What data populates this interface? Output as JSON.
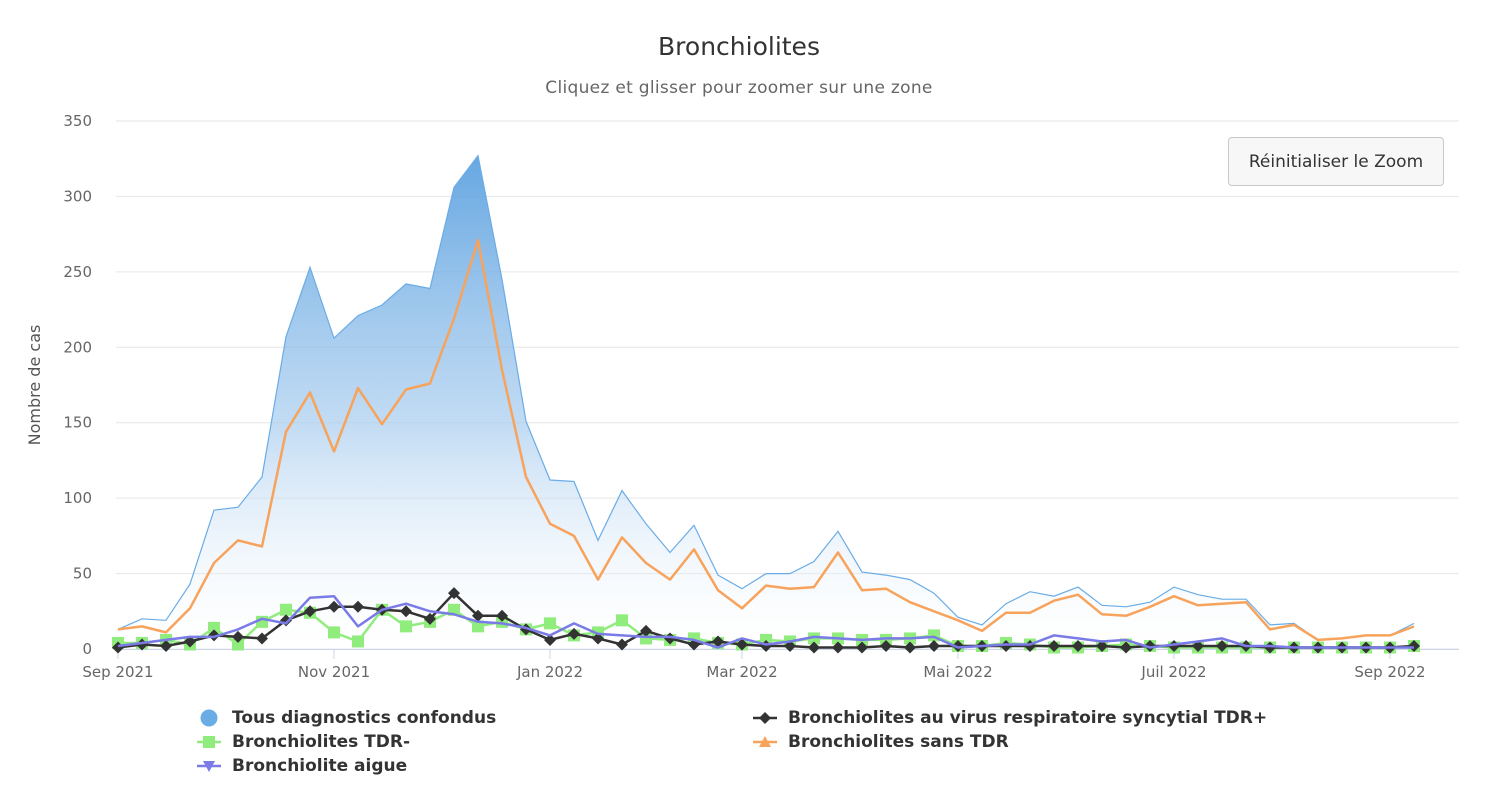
{
  "chart_data": {
    "type": "line",
    "title": "Bronchiolites",
    "subtitle": "Cliquez et glisser pour zoomer sur une zone",
    "ylabel": "Nombre de cas",
    "xlabel": "",
    "ylim": [
      0,
      350
    ],
    "yticks": [
      "0",
      "50",
      "100",
      "150",
      "200",
      "250",
      "300",
      "350"
    ],
    "xtick_labels": [
      "Sep 2021",
      "Nov 2021",
      "Jan 2022",
      "Mar 2022",
      "Mai 2022",
      "Juil 2022",
      "Sep 2022"
    ],
    "xtick_weeks": [
      0,
      9,
      18,
      26,
      35,
      44,
      53
    ],
    "reset_zoom_label": "Réinitialiser le Zoom",
    "series": [
      {
        "name": "Tous diagnostics confondus",
        "type": "area",
        "color": "#6aace6",
        "values": [
          13,
          20,
          19,
          43,
          92,
          94,
          114,
          207,
          253,
          206,
          221,
          228,
          242,
          239,
          306,
          327,
          245,
          151,
          112,
          111,
          72,
          105,
          83,
          64,
          82,
          49,
          40,
          50,
          50,
          58,
          78,
          51,
          49,
          46,
          37,
          21,
          16,
          30,
          38,
          35,
          41,
          29,
          28,
          31,
          41,
          36,
          33,
          33,
          16,
          17,
          6,
          7,
          9,
          9,
          17
        ]
      },
      {
        "name": "Bronchiolites au virus respiratoire syncytial TDR+",
        "type": "line",
        "marker": "diamond",
        "color": "#333333",
        "values": [
          1,
          3,
          2,
          5,
          9,
          8,
          7,
          19,
          25,
          28,
          28,
          26,
          25,
          20,
          37,
          22,
          22,
          13,
          6,
          10,
          7,
          3,
          12,
          7,
          3,
          5,
          3,
          2,
          2,
          1,
          1,
          1,
          2,
          1,
          2,
          2,
          2,
          2,
          2,
          2,
          2,
          2,
          1,
          2,
          2,
          2,
          2,
          2,
          1,
          1,
          1,
          1,
          1,
          1,
          2
        ]
      },
      {
        "name": "Bronchiolites TDR-",
        "type": "line",
        "marker": "square",
        "color": "#90ed7d",
        "values": [
          4,
          4,
          6,
          3,
          14,
          3,
          18,
          26,
          24,
          11,
          5,
          26,
          15,
          18,
          26,
          15,
          18,
          13,
          17,
          9,
          11,
          19,
          7,
          6,
          7,
          4,
          3,
          6,
          5,
          7,
          7,
          6,
          6,
          7,
          9,
          2,
          2,
          4,
          3,
          1,
          1,
          2,
          3,
          2,
          1,
          1,
          1,
          1,
          1,
          1,
          1,
          1,
          1,
          1,
          2
        ]
      },
      {
        "name": "Bronchiolites sans TDR",
        "type": "line",
        "marker": "triangle",
        "color": "#f7a35c",
        "values": [
          13,
          15,
          11,
          27,
          57,
          72,
          68,
          144,
          170,
          131,
          173,
          149,
          172,
          176,
          219,
          271,
          185,
          114,
          83,
          75,
          46,
          74,
          57,
          46,
          66,
          39,
          27,
          42,
          40,
          41,
          64,
          39,
          40,
          31,
          25,
          19,
          12,
          24,
          24,
          32,
          36,
          23,
          22,
          28,
          35,
          29,
          30,
          31,
          13,
          16,
          6,
          7,
          9,
          9,
          15
        ]
      },
      {
        "name": "Bronchiolite aigue",
        "type": "line",
        "marker": "triangle-down",
        "color": "#7b7be8",
        "values": [
          2,
          4,
          6,
          8,
          8,
          13,
          20,
          17,
          34,
          35,
          15,
          26,
          30,
          25,
          23,
          18,
          17,
          14,
          9,
          17,
          10,
          9,
          8,
          8,
          6,
          1,
          7,
          3,
          5,
          8,
          7,
          6,
          7,
          7,
          8,
          1,
          2,
          3,
          3,
          9,
          7,
          5,
          6,
          1,
          3,
          5,
          7,
          2,
          2,
          1,
          1,
          1,
          1,
          1,
          1
        ]
      }
    ]
  }
}
